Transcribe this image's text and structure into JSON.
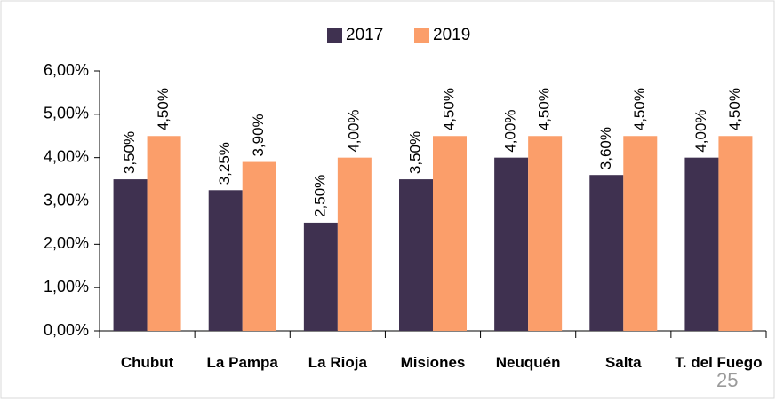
{
  "chart_data": {
    "type": "bar",
    "categories": [
      "Chubut",
      "La Pampa",
      "La Rioja",
      "Misiones",
      "Neuquén",
      "Salta",
      "T. del Fuego"
    ],
    "series": [
      {
        "name": "2017",
        "color": "#3f3150",
        "values": [
          3.5,
          3.25,
          2.5,
          3.5,
          4.0,
          3.6,
          4.0
        ],
        "value_labels": [
          "3,50%",
          "3,25%",
          "2,50%",
          "3,50%",
          "4,00%",
          "3,60%",
          "4,00%"
        ]
      },
      {
        "name": "2019",
        "color": "#fb9e6a",
        "values": [
          4.5,
          3.9,
          4.0,
          4.5,
          4.5,
          4.5,
          4.5
        ],
        "value_labels": [
          "4,50%",
          "3,90%",
          "4,00%",
          "4,50%",
          "4,50%",
          "4,50%",
          "4,50%"
        ]
      }
    ],
    "ylim": [
      0,
      6
    ],
    "yticks": [
      {
        "value": 0,
        "label": "0,00%"
      },
      {
        "value": 1,
        "label": "1,00%"
      },
      {
        "value": 2,
        "label": "2,00%"
      },
      {
        "value": 3,
        "label": "3,00%"
      },
      {
        "value": 4,
        "label": "4,00%"
      },
      {
        "value": 5,
        "label": "5,00%"
      },
      {
        "value": 6,
        "label": "6,00%"
      }
    ],
    "legend": "top"
  },
  "page_number": "25"
}
